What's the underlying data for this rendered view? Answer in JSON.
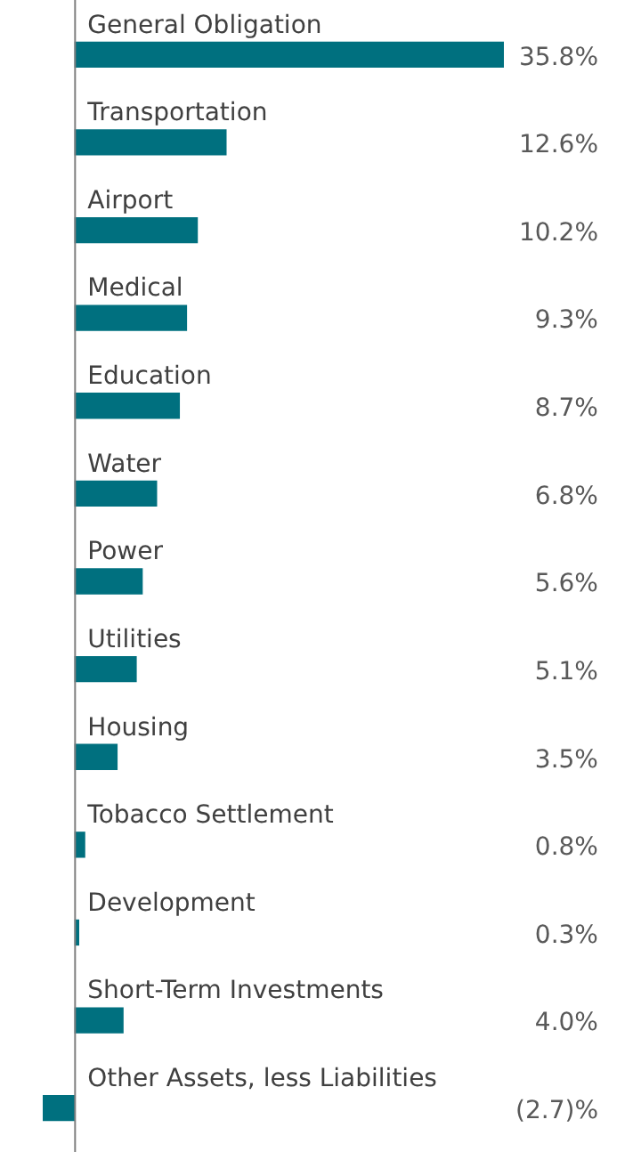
{
  "chart_data": {
    "type": "bar",
    "orientation": "horizontal",
    "categories": [
      "General Obligation",
      "Transportation",
      "Airport",
      "Medical",
      "Education",
      "Water",
      "Power",
      "Utilities",
      "Housing",
      "Tobacco Settlement",
      "Development",
      "Short-Term Investments",
      "Other Assets, less Liabilities"
    ],
    "values": [
      35.8,
      12.6,
      10.2,
      9.3,
      8.7,
      6.8,
      5.6,
      5.1,
      3.5,
      0.8,
      0.3,
      4.0,
      -2.7
    ],
    "value_labels": [
      "35.8%",
      "12.6%",
      "10.2%",
      "9.3%",
      "8.7%",
      "6.8%",
      "5.6%",
      "5.1%",
      "3.5%",
      "0.8%",
      "0.3%",
      "4.0%",
      "(2.7)%"
    ],
    "color": "#00707f",
    "legend": false
  }
}
